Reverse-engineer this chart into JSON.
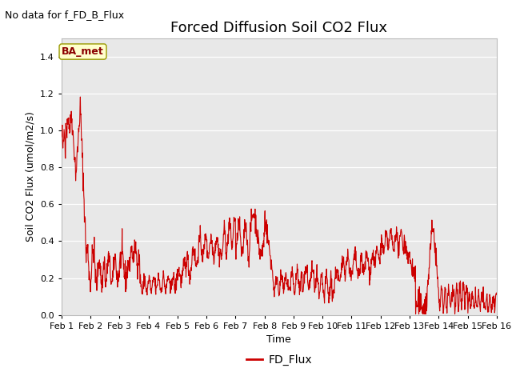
{
  "title": "Forced Diffusion Soil CO2 Flux",
  "no_data_label": "No data for f_FD_B_Flux",
  "ba_met_label": "BA_met",
  "xlabel": "Time",
  "ylabel_display": "Soil CO2 Flux (umol/m2/s)",
  "ylim": [
    0.0,
    1.5
  ],
  "yticks": [
    0.0,
    0.2,
    0.4,
    0.6,
    0.8,
    1.0,
    1.2,
    1.4
  ],
  "xtick_labels": [
    "Feb 1",
    "Feb 2",
    "Feb 3",
    "Feb 4",
    "Feb 5",
    "Feb 6",
    "Feb 7",
    "Feb 8",
    "Feb 9",
    "Feb 10",
    "Feb 11",
    "Feb 12",
    "Feb 13",
    "Feb 14",
    "Feb 15",
    "Feb 16"
  ],
  "line_color": "#cc0000",
  "legend_label": "FD_Flux",
  "plot_bg_color": "#e8e8e8",
  "title_fontsize": 13,
  "axis_label_fontsize": 9,
  "tick_fontsize": 8,
  "no_data_fontsize": 9,
  "ba_met_fontsize": 9,
  "legend_fontsize": 10
}
